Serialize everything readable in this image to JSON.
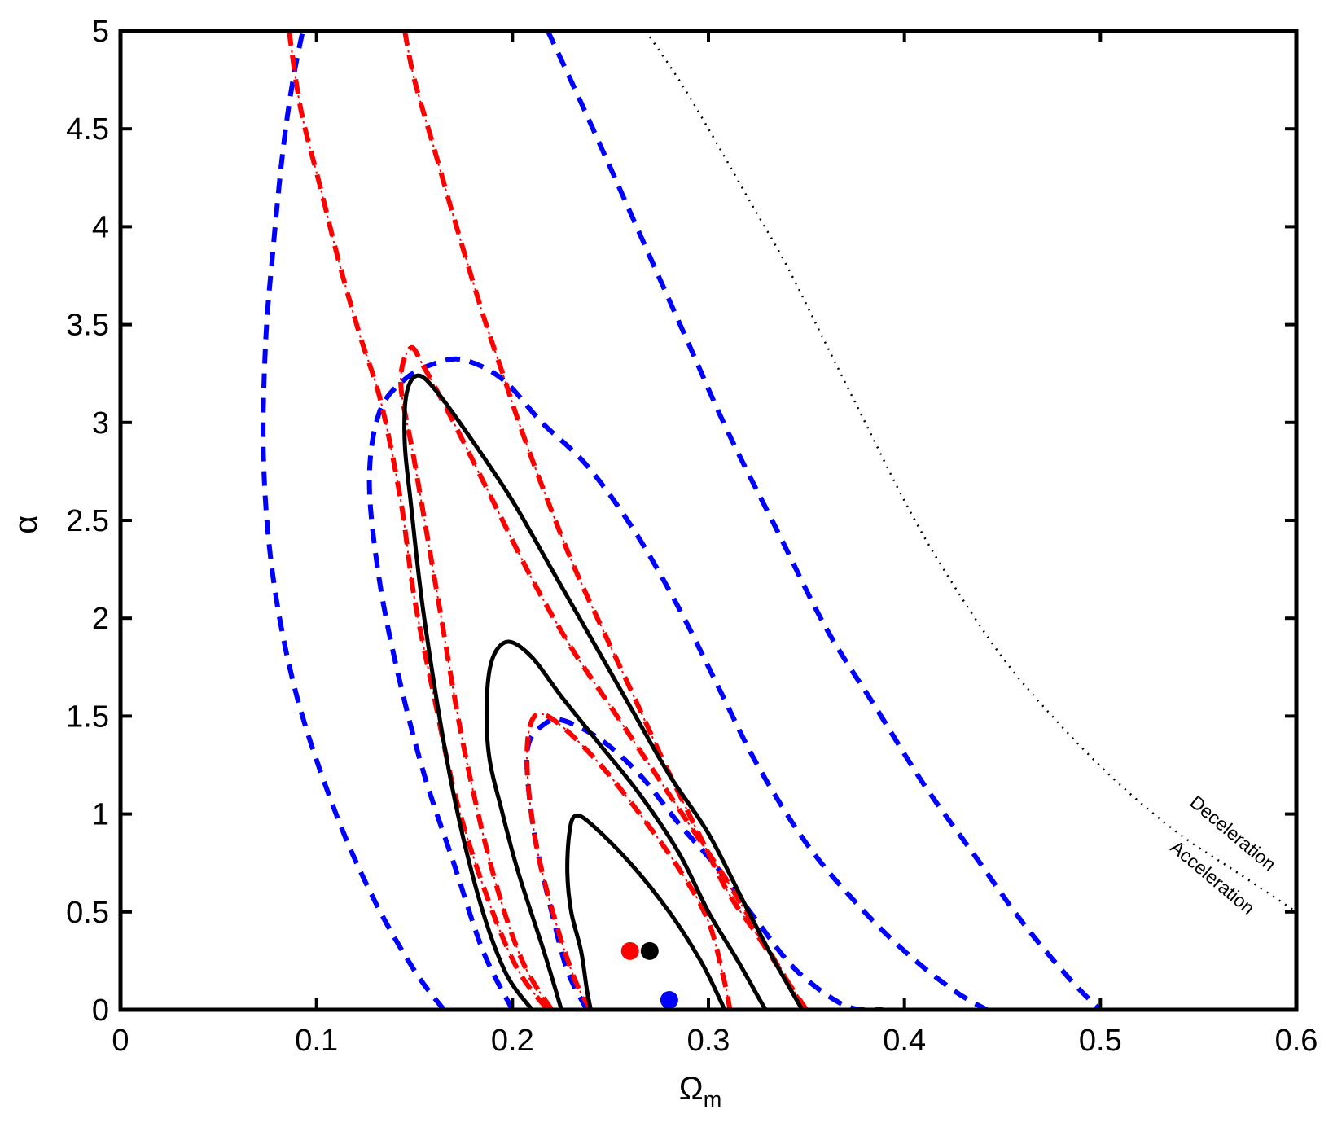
{
  "chart_data": {
    "type": "line",
    "title": "",
    "xlabel": "Ω",
    "xlabel_sub": "m",
    "ylabel": "α",
    "xlim": [
      0,
      0.6
    ],
    "ylim": [
      0,
      5
    ],
    "xticks": [
      0,
      0.1,
      0.2,
      0.3,
      0.4,
      0.5,
      0.6
    ],
    "yticks": [
      0,
      0.5,
      1,
      1.5,
      2,
      2.5,
      3,
      3.5,
      4,
      4.5,
      5
    ],
    "xtick_labels": [
      "0",
      "0.1",
      "0.2",
      "0.3",
      "0.4",
      "0.5",
      "0.6"
    ],
    "ytick_labels": [
      "0",
      "0.5",
      "1",
      "1.5",
      "2",
      "2.5",
      "3",
      "3.5",
      "4",
      "4.5",
      "5"
    ],
    "grid": false,
    "colors": {
      "black": "#000000",
      "red": "#ff0000",
      "blue": "#0000ff"
    },
    "contours": [
      {
        "color": "black",
        "style": "solid",
        "points": [
          [
            0.24,
            0
          ],
          [
            0.238,
            0.1
          ],
          [
            0.235,
            0.3
          ],
          [
            0.23,
            0.5
          ],
          [
            0.228,
            0.7
          ],
          [
            0.229,
            0.9
          ],
          [
            0.232,
            0.99
          ],
          [
            0.24,
            0.95
          ],
          [
            0.26,
            0.75
          ],
          [
            0.28,
            0.5
          ],
          [
            0.296,
            0.25
          ],
          [
            0.306,
            0.05
          ],
          [
            0.308,
            0
          ]
        ]
      },
      {
        "color": "black",
        "style": "solid",
        "points": [
          [
            0.225,
            0
          ],
          [
            0.216,
            0.3
          ],
          [
            0.203,
            0.7
          ],
          [
            0.195,
            1.0
          ],
          [
            0.188,
            1.3
          ],
          [
            0.187,
            1.6
          ],
          [
            0.19,
            1.8
          ],
          [
            0.198,
            1.88
          ],
          [
            0.21,
            1.8
          ],
          [
            0.225,
            1.6
          ],
          [
            0.245,
            1.35
          ],
          [
            0.265,
            1.1
          ],
          [
            0.285,
            0.8
          ],
          [
            0.3,
            0.5
          ],
          [
            0.315,
            0.25
          ],
          [
            0.328,
            0.02
          ],
          [
            0.33,
            0
          ]
        ]
      },
      {
        "color": "black",
        "style": "solid",
        "points": [
          [
            0.21,
            0
          ],
          [
            0.196,
            0.2
          ],
          [
            0.182,
            0.6
          ],
          [
            0.168,
            1.2
          ],
          [
            0.155,
            2.0
          ],
          [
            0.148,
            2.6
          ],
          [
            0.145,
            2.9
          ],
          [
            0.146,
            3.15
          ],
          [
            0.152,
            3.24
          ],
          [
            0.162,
            3.15
          ],
          [
            0.18,
            2.9
          ],
          [
            0.2,
            2.6
          ],
          [
            0.22,
            2.25
          ],
          [
            0.24,
            1.9
          ],
          [
            0.26,
            1.55
          ],
          [
            0.28,
            1.2
          ],
          [
            0.3,
            0.9
          ],
          [
            0.318,
            0.55
          ],
          [
            0.332,
            0.28
          ],
          [
            0.345,
            0.05
          ],
          [
            0.348,
            0
          ]
        ]
      },
      {
        "color": "red",
        "style": "dashed",
        "points": [
          [
            0.24,
            0
          ],
          [
            0.232,
            0.15
          ],
          [
            0.222,
            0.45
          ],
          [
            0.213,
            0.8
          ],
          [
            0.208,
            1.15
          ],
          [
            0.208,
            1.4
          ],
          [
            0.213,
            1.51
          ],
          [
            0.225,
            1.45
          ],
          [
            0.245,
            1.25
          ],
          [
            0.265,
            1.0
          ],
          [
            0.285,
            0.72
          ],
          [
            0.3,
            0.45
          ],
          [
            0.308,
            0.15
          ],
          [
            0.311,
            0
          ]
        ]
      },
      {
        "color": "red",
        "style": "dashed",
        "points": [
          [
            0.22,
            0
          ],
          [
            0.205,
            0.25
          ],
          [
            0.19,
            0.7
          ],
          [
            0.175,
            1.35
          ],
          [
            0.162,
            2.1
          ],
          [
            0.15,
            2.8
          ],
          [
            0.143,
            3.2
          ],
          [
            0.148,
            3.38
          ],
          [
            0.155,
            3.28
          ],
          [
            0.17,
            3.0
          ],
          [
            0.19,
            2.6
          ],
          [
            0.21,
            2.2
          ],
          [
            0.23,
            1.85
          ],
          [
            0.25,
            1.55
          ],
          [
            0.27,
            1.25
          ],
          [
            0.29,
            0.95
          ],
          [
            0.31,
            0.65
          ],
          [
            0.325,
            0.4
          ],
          [
            0.34,
            0.15
          ],
          [
            0.349,
            0
          ]
        ]
      },
      {
        "color": "red",
        "style": "dashed",
        "points": [
          [
            0.145,
            5.0
          ],
          [
            0.15,
            4.75
          ],
          [
            0.16,
            4.4
          ],
          [
            0.17,
            4.05
          ],
          [
            0.185,
            3.55
          ],
          [
            0.195,
            3.25
          ],
          [
            0.205,
            2.95
          ],
          [
            0.218,
            2.6
          ],
          [
            0.232,
            2.25
          ],
          [
            0.248,
            1.9
          ],
          [
            0.262,
            1.6
          ],
          [
            0.278,
            1.25
          ],
          [
            0.295,
            0.9
          ],
          [
            0.31,
            0.6
          ],
          [
            0.325,
            0.38
          ],
          [
            0.34,
            0.15
          ],
          [
            0.35,
            0
          ]
        ]
      },
      {
        "color": "red",
        "style": "dashed",
        "points": [
          [
            0.086,
            5.0
          ],
          [
            0.092,
            4.6
          ],
          [
            0.102,
            4.2
          ],
          [
            0.112,
            3.8
          ],
          [
            0.122,
            3.45
          ],
          [
            0.133,
            3.1
          ],
          [
            0.143,
            2.6
          ],
          [
            0.15,
            2.1
          ],
          [
            0.16,
            1.6
          ],
          [
            0.172,
            1.05
          ],
          [
            0.188,
            0.55
          ],
          [
            0.203,
            0.2
          ],
          [
            0.218,
            0
          ]
        ]
      },
      {
        "color": "blue",
        "style": "dashed",
        "points": [
          [
            0.238,
            0
          ],
          [
            0.228,
            0.2
          ],
          [
            0.22,
            0.5
          ],
          [
            0.212,
            0.85
          ],
          [
            0.208,
            1.15
          ],
          [
            0.208,
            1.35
          ],
          [
            0.215,
            1.45
          ],
          [
            0.225,
            1.48
          ],
          [
            0.245,
            1.38
          ],
          [
            0.265,
            1.2
          ],
          [
            0.285,
            0.95
          ],
          [
            0.305,
            0.72
          ],
          [
            0.325,
            0.45
          ],
          [
            0.345,
            0.2
          ],
          [
            0.37,
            0.02
          ],
          [
            0.389,
            0
          ]
        ]
      },
      {
        "color": "blue",
        "style": "dashed",
        "points": [
          [
            0.2,
            0
          ],
          [
            0.185,
            0.3
          ],
          [
            0.17,
            0.75
          ],
          [
            0.155,
            1.2
          ],
          [
            0.142,
            1.7
          ],
          [
            0.132,
            2.2
          ],
          [
            0.127,
            2.7
          ],
          [
            0.132,
            3.05
          ],
          [
            0.145,
            3.22
          ],
          [
            0.16,
            3.3
          ],
          [
            0.175,
            3.32
          ],
          [
            0.195,
            3.22
          ],
          [
            0.215,
            3.0
          ],
          [
            0.238,
            2.78
          ],
          [
            0.262,
            2.45
          ],
          [
            0.285,
            2.05
          ],
          [
            0.305,
            1.65
          ],
          [
            0.325,
            1.25
          ],
          [
            0.35,
            0.85
          ],
          [
            0.375,
            0.55
          ],
          [
            0.4,
            0.3
          ],
          [
            0.425,
            0.1
          ],
          [
            0.442,
            0
          ]
        ]
      },
      {
        "color": "blue",
        "style": "dashed",
        "points": [
          [
            0.165,
            0
          ],
          [
            0.15,
            0.2
          ],
          [
            0.13,
            0.55
          ],
          [
            0.11,
            1.0
          ],
          [
            0.09,
            1.6
          ],
          [
            0.078,
            2.2
          ],
          [
            0.073,
            2.8
          ],
          [
            0.074,
            3.4
          ],
          [
            0.078,
            3.9
          ],
          [
            0.083,
            4.4
          ],
          [
            0.088,
            4.75
          ],
          [
            0.093,
            5.0
          ]
        ]
      },
      {
        "color": "blue",
        "style": "dashed",
        "points": [
          [
            0.218,
            5.0
          ],
          [
            0.232,
            4.7
          ],
          [
            0.25,
            4.3
          ],
          [
            0.27,
            3.85
          ],
          [
            0.29,
            3.4
          ],
          [
            0.31,
            2.95
          ],
          [
            0.335,
            2.45
          ],
          [
            0.36,
            1.95
          ],
          [
            0.385,
            1.55
          ],
          [
            0.41,
            1.15
          ],
          [
            0.435,
            0.8
          ],
          [
            0.46,
            0.45
          ],
          [
            0.485,
            0.15
          ],
          [
            0.5,
            0
          ]
        ]
      },
      {
        "color": "black",
        "style": "dotted",
        "points": [
          [
            0.268,
            5.0
          ],
          [
            0.285,
            4.75
          ],
          [
            0.3,
            4.5
          ],
          [
            0.32,
            4.15
          ],
          [
            0.34,
            3.8
          ],
          [
            0.36,
            3.4
          ],
          [
            0.38,
            3.0
          ],
          [
            0.4,
            2.6
          ],
          [
            0.42,
            2.25
          ],
          [
            0.45,
            1.8
          ],
          [
            0.48,
            1.45
          ],
          [
            0.51,
            1.15
          ],
          [
            0.54,
            0.9
          ],
          [
            0.57,
            0.7
          ],
          [
            0.6,
            0.5
          ]
        ]
      }
    ],
    "points": [
      {
        "color": "red",
        "x": 0.26,
        "y": 0.3
      },
      {
        "color": "black",
        "x": 0.27,
        "y": 0.3
      },
      {
        "color": "blue",
        "x": 0.28,
        "y": 0.05
      }
    ],
    "annotations": [
      {
        "text": "Deceleration",
        "x": 0.545,
        "y": 1.05,
        "angle": 40
      },
      {
        "text": "Acceleration",
        "x": 0.535,
        "y": 0.82,
        "angle": 40
      }
    ]
  }
}
